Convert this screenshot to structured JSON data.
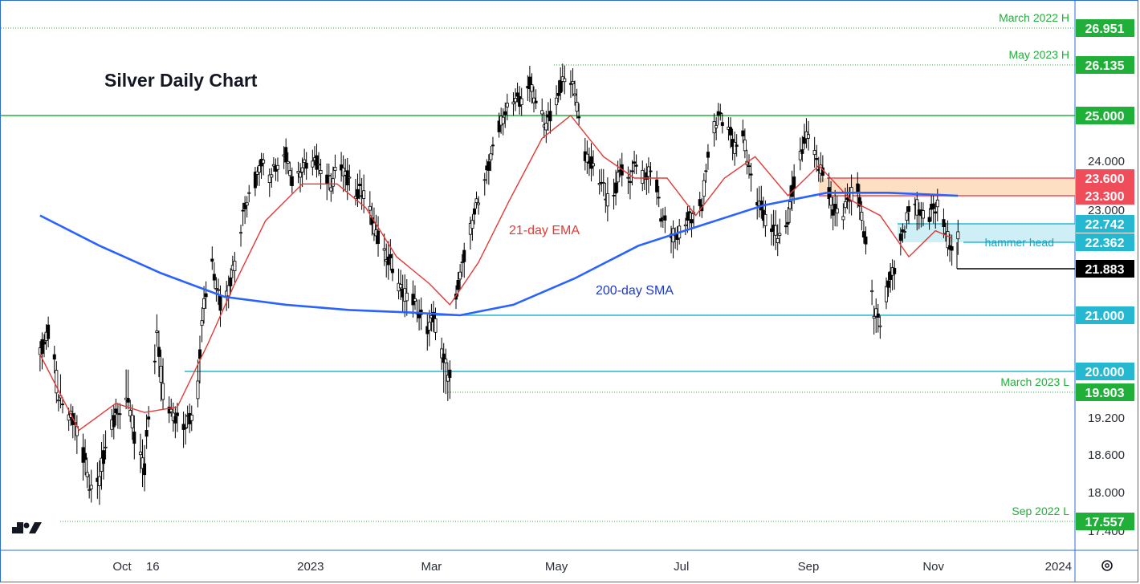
{
  "chart_data": {
    "type": "candlestick",
    "title": "Silver Daily Chart",
    "y_axis": {
      "ticks": [
        "24.000",
        "23.000",
        "19.200",
        "18.600",
        "18.000",
        "17.400"
      ],
      "tick_values": [
        24.0,
        23.0,
        19.2,
        18.6,
        18.0,
        17.4
      ]
    },
    "x_axis": {
      "ticks": [
        "Oct",
        "16",
        "2023",
        "Mar",
        "May",
        "Jul",
        "Sep",
        "Nov",
        "2024"
      ]
    },
    "series": [
      {
        "name": "21-day EMA",
        "color": "#e53935",
        "points": [
          [
            "2022-08-22",
            20.3
          ],
          [
            "2022-09-10",
            19.0
          ],
          [
            "2022-09-28",
            19.6
          ],
          [
            "2022-10-12",
            19.35
          ],
          [
            "2022-10-28",
            19.5
          ],
          [
            "2022-11-12",
            20.5
          ],
          [
            "2022-11-25",
            21.6
          ],
          [
            "2022-12-10",
            22.8
          ],
          [
            "2022-12-28",
            23.5
          ],
          [
            "2023-01-14",
            23.5
          ],
          [
            "2023-01-28",
            23.05
          ],
          [
            "2023-02-12",
            22.1
          ],
          [
            "2023-02-28",
            21.6
          ],
          [
            "2023-03-10",
            21.2
          ],
          [
            "2023-03-24",
            22.0
          ],
          [
            "2023-04-08",
            23.2
          ],
          [
            "2023-04-24",
            24.5
          ],
          [
            "2023-05-08",
            25.0
          ],
          [
            "2023-05-24",
            24.1
          ],
          [
            "2023-06-08",
            23.6
          ],
          [
            "2023-06-24",
            23.6
          ],
          [
            "2023-07-08",
            22.9
          ],
          [
            "2023-07-22",
            23.6
          ],
          [
            "2023-08-06",
            24.1
          ],
          [
            "2023-08-22",
            23.3
          ],
          [
            "2023-09-06",
            23.9
          ],
          [
            "2023-09-22",
            23.2
          ],
          [
            "2023-10-06",
            22.9
          ],
          [
            "2023-10-20",
            22.1
          ],
          [
            "2023-11-02",
            22.6
          ],
          [
            "2023-11-10",
            22.45
          ]
        ]
      },
      {
        "name": "200-day SMA",
        "color": "#2962ff",
        "points": [
          [
            "2022-08-22",
            22.9
          ],
          [
            "2022-09-20",
            22.3
          ],
          [
            "2022-10-20",
            21.8
          ],
          [
            "2022-11-20",
            21.35
          ],
          [
            "2022-12-20",
            21.2
          ],
          [
            "2023-01-20",
            21.1
          ],
          [
            "2023-02-20",
            21.05
          ],
          [
            "2023-03-15",
            21.0
          ],
          [
            "2023-04-10",
            21.2
          ],
          [
            "2023-05-10",
            21.7
          ],
          [
            "2023-06-10",
            22.3
          ],
          [
            "2023-07-10",
            22.7
          ],
          [
            "2023-08-10",
            23.1
          ],
          [
            "2023-09-10",
            23.35
          ],
          [
            "2023-10-10",
            23.35
          ],
          [
            "2023-11-13",
            23.3
          ]
        ]
      }
    ],
    "levels": [
      {
        "value": 26.951,
        "label": "26.951",
        "note": "March 2022 H",
        "color": "#20b03a"
      },
      {
        "value": 26.135,
        "label": "26.135",
        "note": "May 2023 H",
        "color": "#20b03a"
      },
      {
        "value": 25.0,
        "label": "25.000",
        "note": "",
        "color": "#20b03a"
      },
      {
        "value": 23.6,
        "label": "23.600",
        "note": "",
        "color": "#f04d5a"
      },
      {
        "value": 23.3,
        "label": "23.300",
        "note": "",
        "color": "#f04d5a"
      },
      {
        "value": 22.742,
        "label": "22.742",
        "note": "",
        "color": "#26b8d0"
      },
      {
        "value": 22.362,
        "label": "22.362",
        "note": "hammer head",
        "color": "#26b8d0"
      },
      {
        "value": 21.883,
        "label": "21.883",
        "note": "",
        "color": "#000000"
      },
      {
        "value": 21.0,
        "label": "21.000",
        "note": "",
        "color": "#26b8d0"
      },
      {
        "value": 20.0,
        "label": "20.000",
        "note": "",
        "color": "#26b8d0"
      },
      {
        "value": 19.903,
        "label": "19.903",
        "note": "March 2023 L",
        "color": "#20b03a"
      },
      {
        "value": 17.557,
        "label": "17.557",
        "note": "Sep 2022 L",
        "color": "#20b03a"
      }
    ],
    "zones": [
      {
        "from": 23.3,
        "to": 23.6,
        "color": "#fde0c4"
      },
      {
        "from": 22.362,
        "to": 22.742,
        "color": "#cdeff5"
      }
    ],
    "annotations": [
      "21-day EMA",
      "200-day SMA",
      "hammer head"
    ],
    "price_path": [
      [
        "2022-08-22",
        20.3
      ],
      [
        "2022-08-26",
        20.7
      ],
      [
        "2022-08-31",
        19.8
      ],
      [
        "2022-09-02",
        19.6
      ],
      [
        "2022-09-08",
        19.1
      ],
      [
        "2022-09-12",
        18.6
      ],
      [
        "2022-09-16",
        18.0
      ],
      [
        "2022-09-20",
        18.3
      ],
      [
        "2022-09-26",
        19.1
      ],
      [
        "2022-09-30",
        19.4
      ],
      [
        "2022-10-04",
        19.7
      ],
      [
        "2022-10-07",
        18.9
      ],
      [
        "2022-10-12",
        18.4
      ],
      [
        "2022-10-14",
        19.2
      ],
      [
        "2022-10-18",
        20.6
      ],
      [
        "2022-10-22",
        19.6
      ],
      [
        "2022-10-26",
        19.3
      ],
      [
        "2022-10-30",
        19.0
      ],
      [
        "2022-11-03",
        19.2
      ],
      [
        "2022-11-06",
        19.4
      ],
      [
        "2022-11-10",
        21.3
      ],
      [
        "2022-11-14",
        21.9
      ],
      [
        "2022-11-18",
        21.2
      ],
      [
        "2022-11-22",
        21.5
      ],
      [
        "2022-11-26",
        22.2
      ],
      [
        "2022-11-30",
        23.1
      ],
      [
        "2022-12-04",
        23.4
      ],
      [
        "2022-12-08",
        24.0
      ],
      [
        "2022-12-12",
        23.7
      ],
      [
        "2022-12-16",
        23.9
      ],
      [
        "2022-12-20",
        24.1
      ],
      [
        "2022-12-24",
        23.4
      ],
      [
        "2022-12-28",
        23.9
      ],
      [
        "2023-01-03",
        24.0
      ],
      [
        "2023-01-07",
        23.7
      ],
      [
        "2023-01-11",
        23.5
      ],
      [
        "2023-01-15",
        24.0
      ],
      [
        "2023-01-19",
        23.6
      ],
      [
        "2023-01-23",
        23.3
      ],
      [
        "2023-01-27",
        23.4
      ],
      [
        "2023-02-01",
        22.7
      ],
      [
        "2023-02-05",
        22.2
      ],
      [
        "2023-02-10",
        21.9
      ],
      [
        "2023-02-14",
        21.5
      ],
      [
        "2023-02-20",
        21.3
      ],
      [
        "2023-02-26",
        20.7
      ],
      [
        "2023-03-02",
        21.0
      ],
      [
        "2023-03-08",
        20.1
      ],
      [
        "2023-03-10",
        20.0
      ],
      [
        "2023-03-14",
        21.6
      ],
      [
        "2023-03-18",
        22.3
      ],
      [
        "2023-03-22",
        23.0
      ],
      [
        "2023-03-28",
        23.7
      ],
      [
        "2023-04-01",
        24.5
      ],
      [
        "2023-04-05",
        25.0
      ],
      [
        "2023-04-10",
        25.4
      ],
      [
        "2023-04-14",
        25.3
      ],
      [
        "2023-04-18",
        25.7
      ],
      [
        "2023-04-22",
        25.2
      ],
      [
        "2023-04-26",
        24.8
      ],
      [
        "2023-05-01",
        25.3
      ],
      [
        "2023-05-05",
        25.9
      ],
      [
        "2023-05-10",
        25.6
      ],
      [
        "2023-05-14",
        24.2
      ],
      [
        "2023-05-18",
        23.9
      ],
      [
        "2023-05-22",
        23.6
      ],
      [
        "2023-05-28",
        23.1
      ],
      [
        "2023-06-01",
        23.8
      ],
      [
        "2023-06-05",
        23.5
      ],
      [
        "2023-06-09",
        24.0
      ],
      [
        "2023-06-13",
        23.6
      ],
      [
        "2023-06-17",
        23.9
      ],
      [
        "2023-06-21",
        22.9
      ],
      [
        "2023-06-25",
        22.6
      ],
      [
        "2023-06-29",
        22.5
      ],
      [
        "2023-07-03",
        22.8
      ],
      [
        "2023-07-07",
        22.9
      ],
      [
        "2023-07-11",
        23.1
      ],
      [
        "2023-07-15",
        24.5
      ],
      [
        "2023-07-19",
        25.0
      ],
      [
        "2023-07-23",
        24.8
      ],
      [
        "2023-07-27",
        24.3
      ],
      [
        "2023-07-31",
        24.6
      ],
      [
        "2023-08-04",
        23.6
      ],
      [
        "2023-08-08",
        23.1
      ],
      [
        "2023-08-12",
        22.7
      ],
      [
        "2023-08-16",
        22.6
      ],
      [
        "2023-08-20",
        22.4
      ],
      [
        "2023-08-24",
        23.3
      ],
      [
        "2023-08-28",
        24.1
      ],
      [
        "2023-09-01",
        24.7
      ],
      [
        "2023-09-05",
        24.0
      ],
      [
        "2023-09-09",
        23.6
      ],
      [
        "2023-09-13",
        23.0
      ],
      [
        "2023-09-17",
        22.9
      ],
      [
        "2023-09-21",
        23.3
      ],
      [
        "2023-09-25",
        23.4
      ],
      [
        "2023-09-29",
        22.3
      ],
      [
        "2023-10-03",
        21.1
      ],
      [
        "2023-10-06",
        20.9
      ],
      [
        "2023-10-10",
        21.6
      ],
      [
        "2023-10-14",
        22.0
      ],
      [
        "2023-10-18",
        22.7
      ],
      [
        "2023-10-22",
        23.3
      ],
      [
        "2023-10-26",
        22.9
      ],
      [
        "2023-10-30",
        22.9
      ],
      [
        "2023-11-03",
        23.1
      ],
      [
        "2023-11-07",
        22.6
      ],
      [
        "2023-11-10",
        22.2
      ],
      [
        "2023-11-13",
        22.5
      ]
    ],
    "colors": {
      "up": "#000000",
      "down": "#000000",
      "axis_border": "#2a6fd6"
    }
  }
}
